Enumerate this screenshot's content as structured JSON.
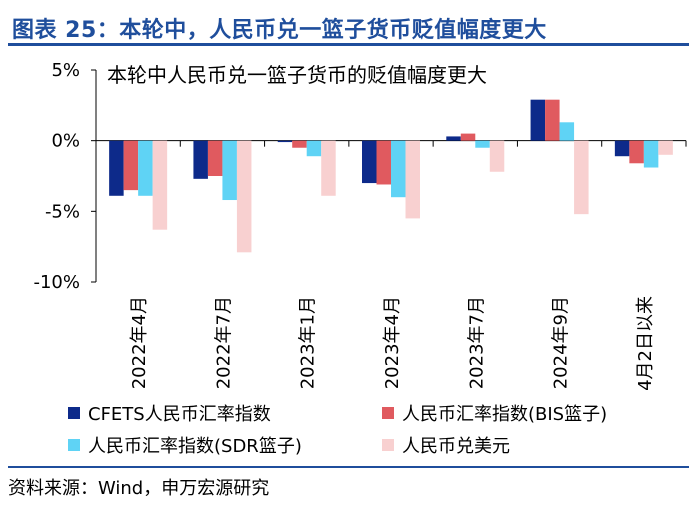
{
  "header": {
    "title": "图表 25：本轮中，人民币兑一篮子货币贬值幅度更大"
  },
  "chart_data": {
    "type": "bar",
    "title": "本轮中人民币兑一篮子货币的贬值幅度更大",
    "categories": [
      "2022年4月",
      "2022年7月",
      "2023年1月",
      "2023年4月",
      "2023年7月",
      "2024年9月",
      "4月2日以来"
    ],
    "series": [
      {
        "name": "CFETS人民币汇率指数",
        "color": "#0d2a8a",
        "values": [
          -3.9,
          -2.7,
          -0.1,
          -3.0,
          0.3,
          2.9,
          -1.1
        ]
      },
      {
        "name": "人民币汇率指数(BIS篮子)",
        "color": "#e05a5f",
        "values": [
          -3.5,
          -2.5,
          -0.5,
          -3.1,
          0.5,
          2.9,
          -1.6
        ]
      },
      {
        "name": "人民币汇率指数(SDR篮子)",
        "color": "#5fd3f5",
        "values": [
          -3.9,
          -4.2,
          -1.1,
          -4.0,
          -0.5,
          1.3,
          -1.9
        ]
      },
      {
        "name": "人民币兑美元",
        "color": "#f8d0d0",
        "values": [
          -6.3,
          -7.9,
          -3.9,
          -5.5,
          -2.2,
          -5.2,
          -1.0
        ]
      }
    ],
    "yticks": [
      "5%",
      "0%",
      "-5%",
      "-10%"
    ],
    "ytick_values": [
      5,
      0,
      -5,
      -10
    ],
    "ylim": [
      -10,
      5
    ],
    "grid": false,
    "legend": "bottom"
  },
  "source": "资料来源：Wind，申万宏源研究"
}
